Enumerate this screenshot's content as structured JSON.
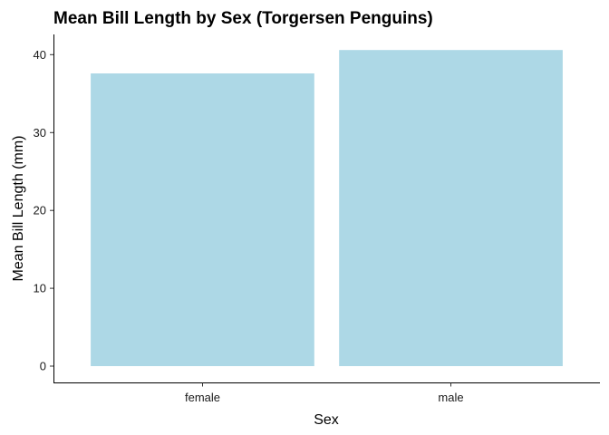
{
  "chart_data": {
    "type": "bar",
    "title": "Mean Bill Length by Sex (Torgersen Penguins)",
    "xlabel": "Sex",
    "ylabel": "Mean Bill Length (mm)",
    "categories": [
      "female",
      "male"
    ],
    "values": [
      37.6,
      40.6
    ],
    "ylim": [
      0,
      42.6
    ],
    "yticks": [
      0,
      10,
      20,
      30,
      40
    ],
    "bar_color": "#ADD8E6",
    "grid": false,
    "legend": "none"
  }
}
